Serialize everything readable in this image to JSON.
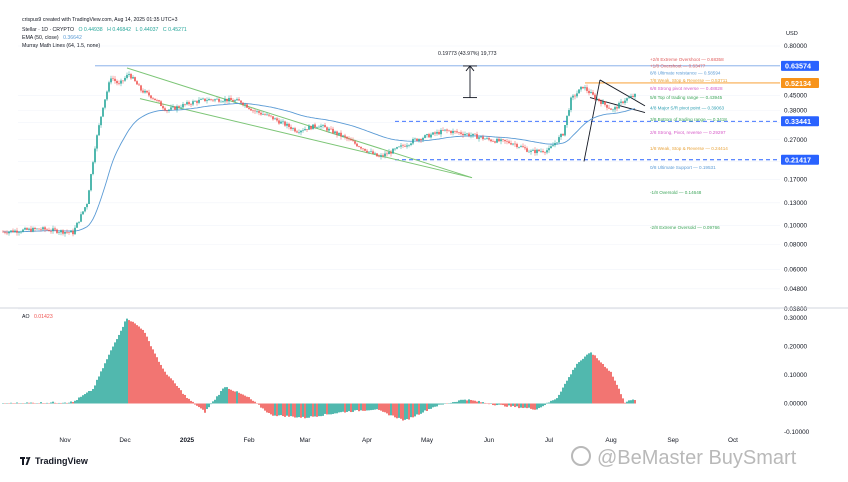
{
  "header": {
    "line1": "crispus9 created with TradingView.com, Aug 14, 2025 01:35 UTC+3",
    "symbol": "Stellar · 1D · CRYPTO",
    "open": "O 0.44938",
    "high": "H 0.46842",
    "low": "L 0.44037",
    "close": "C 0.45271",
    "ema_label": "EMA (50, close)",
    "ema_value": "0.36642",
    "murrey_label": "Murray Math Lines (64, 1.5, none)"
  },
  "currency_label": "USD",
  "measure_label": "0.19773 (43.97%) 19,773",
  "colors": {
    "up": "#26a69a",
    "down": "#ef5350",
    "ema": "#5b9bd5",
    "channel": "#7cc576",
    "dashed": "#2962ff",
    "price_tag": "#f7931a",
    "level_tag": "#2962ff"
  },
  "murrey_levels": [
    {
      "label": "+2/8 Extreme Overshoot — 0.68358",
      "value": 0.68358,
      "color": "#e05d5d"
    },
    {
      "label": "+1/8 Overshoot — 0.63477",
      "value": 0.63477,
      "color": "#e05d5d"
    },
    {
      "label": "8/8 Ultimate resistance — 0.58594",
      "value": 0.58594,
      "color": "#5b9bd5"
    },
    {
      "label": "7/8 Weak, Stop & Reverse — 0.53711",
      "value": 0.53711,
      "color": "#e8a33b"
    },
    {
      "label": "6/8 Strong pivot reverse — 0.48828",
      "value": 0.48828,
      "color": "#d65ac8"
    },
    {
      "label": "5/8 Top of trading range — 0.43945",
      "value": 0.43945,
      "color": "#3da55a"
    },
    {
      "label": "4/8 Major S/R pivot point — 0.39063",
      "value": 0.39063,
      "color": "#2f9fb3"
    },
    {
      "label": "3/8 Bottom of trading range — 0.3418",
      "value": 0.3418,
      "color": "#3da55a"
    },
    {
      "label": "2/8 Strong, Pivot, reverse — 0.29297",
      "value": 0.29297,
      "color": "#d65ac8"
    },
    {
      "label": "1/8 Weak, Stop & Reverse — 0.24414",
      "value": 0.24414,
      "color": "#e8a33b"
    },
    {
      "label": "0/8 Ultimate Support — 0.19531",
      "value": 0.19531,
      "color": "#5b9bd5"
    },
    {
      "label": "-1/8 Oversold — 0.14648",
      "value": 0.14648,
      "color": "#3da55a"
    },
    {
      "label": "-2/8 Extreme Oversold — 0.09766",
      "value": 0.09766,
      "color": "#3da55a"
    }
  ],
  "price_tags": [
    {
      "label": "0.63574",
      "value": 0.63574,
      "color": "#2962ff"
    },
    {
      "label": "0.52134",
      "value": 0.52134,
      "color": "#f7931a"
    },
    {
      "label": "0.33441",
      "value": 0.33441,
      "color": "#2962ff"
    },
    {
      "label": "0.21417",
      "value": 0.21417,
      "color": "#2962ff"
    }
  ],
  "ao": {
    "label": "AO",
    "value": "0.01423",
    "ticks": [
      "0.30000",
      "0.20000",
      "0.10000",
      "0.00000",
      "-0.10000"
    ]
  },
  "chart_data": [
    {
      "type": "candlestick",
      "title": "Stellar · 1D · CRYPTO",
      "x_labels": [
        "Nov",
        "Dec",
        "2025",
        "Feb",
        "Mar",
        "Apr",
        "May",
        "Jun",
        "Jul",
        "Aug",
        "Sep",
        "Oct"
      ],
      "y_scale": "log",
      "ylim": [
        0.038,
        0.8
      ],
      "y_ticks": [
        "0.80000",
        "0.45000",
        "0.38000",
        "0.33000",
        "0.27000",
        "0.21000",
        "0.17000",
        "0.13000",
        "0.10000",
        "0.08000",
        "0.06000",
        "0.04800",
        "0.03800"
      ],
      "price_path": [
        [
          "2024-10-01",
          0.093
        ],
        [
          "2024-10-20",
          0.096
        ],
        [
          "2024-11-05",
          0.092
        ],
        [
          "2024-11-12",
          0.13
        ],
        [
          "2024-11-16",
          0.25
        ],
        [
          "2024-11-20",
          0.4
        ],
        [
          "2024-11-24",
          0.56
        ],
        [
          "2024-11-28",
          0.51
        ],
        [
          "2024-12-03",
          0.58
        ],
        [
          "2024-12-09",
          0.48
        ],
        [
          "2024-12-15",
          0.44
        ],
        [
          "2024-12-22",
          0.38
        ],
        [
          "2025-01-05",
          0.42
        ],
        [
          "2025-01-11",
          0.43
        ],
        [
          "2025-01-20",
          0.43
        ],
        [
          "2025-01-28",
          0.42
        ],
        [
          "2025-02-03",
          0.38
        ],
        [
          "2025-02-12",
          0.35
        ],
        [
          "2025-02-25",
          0.3
        ],
        [
          "2025-03-08",
          0.32
        ],
        [
          "2025-03-20",
          0.28
        ],
        [
          "2025-04-07",
          0.22
        ],
        [
          "2025-04-15",
          0.24
        ],
        [
          "2025-04-25",
          0.27
        ],
        [
          "2025-05-10",
          0.3
        ],
        [
          "2025-05-20",
          0.29
        ],
        [
          "2025-06-01",
          0.27
        ],
        [
          "2025-06-13",
          0.26
        ],
        [
          "2025-06-22",
          0.235
        ],
        [
          "2025-07-01",
          0.24
        ],
        [
          "2025-07-08",
          0.29
        ],
        [
          "2025-07-12",
          0.43
        ],
        [
          "2025-07-18",
          0.5
        ],
        [
          "2025-07-24",
          0.44
        ],
        [
          "2025-08-02",
          0.38
        ],
        [
          "2025-08-08",
          0.43
        ],
        [
          "2025-08-13",
          0.45
        ]
      ],
      "ema_label": "EMA (50, close)",
      "annotations": [
        "0.19773 (43.97%) 19,773"
      ]
    },
    {
      "type": "bar",
      "title": "AO",
      "ylim": [
        -0.1,
        0.3
      ],
      "y_ticks": [
        "0.30000",
        "0.20000",
        "0.10000",
        "0.00000",
        "-0.10000"
      ],
      "values_path": [
        [
          "2024-10-01",
          0.0
        ],
        [
          "2024-11-05",
          0.005
        ],
        [
          "2024-11-15",
          0.05
        ],
        [
          "2024-11-25",
          0.2
        ],
        [
          "2024-12-02",
          0.3
        ],
        [
          "2024-12-10",
          0.26
        ],
        [
          "2024-12-20",
          0.12
        ],
        [
          "2025-01-01",
          0.02
        ],
        [
          "2025-01-10",
          -0.03
        ],
        [
          "2025-01-20",
          0.06
        ],
        [
          "2025-02-01",
          0.02
        ],
        [
          "2025-02-12",
          -0.04
        ],
        [
          "2025-03-01",
          -0.05
        ],
        [
          "2025-03-20",
          -0.03
        ],
        [
          "2025-04-05",
          -0.02
        ],
        [
          "2025-04-20",
          -0.06
        ],
        [
          "2025-05-05",
          -0.01
        ],
        [
          "2025-05-20",
          0.015
        ],
        [
          "2025-06-05",
          -0.005
        ],
        [
          "2025-06-25",
          -0.02
        ],
        [
          "2025-07-05",
          0.02
        ],
        [
          "2025-07-15",
          0.14
        ],
        [
          "2025-07-22",
          0.18
        ],
        [
          "2025-08-01",
          0.11
        ],
        [
          "2025-08-08",
          0.005
        ],
        [
          "2025-08-13",
          0.014
        ]
      ]
    }
  ]
}
